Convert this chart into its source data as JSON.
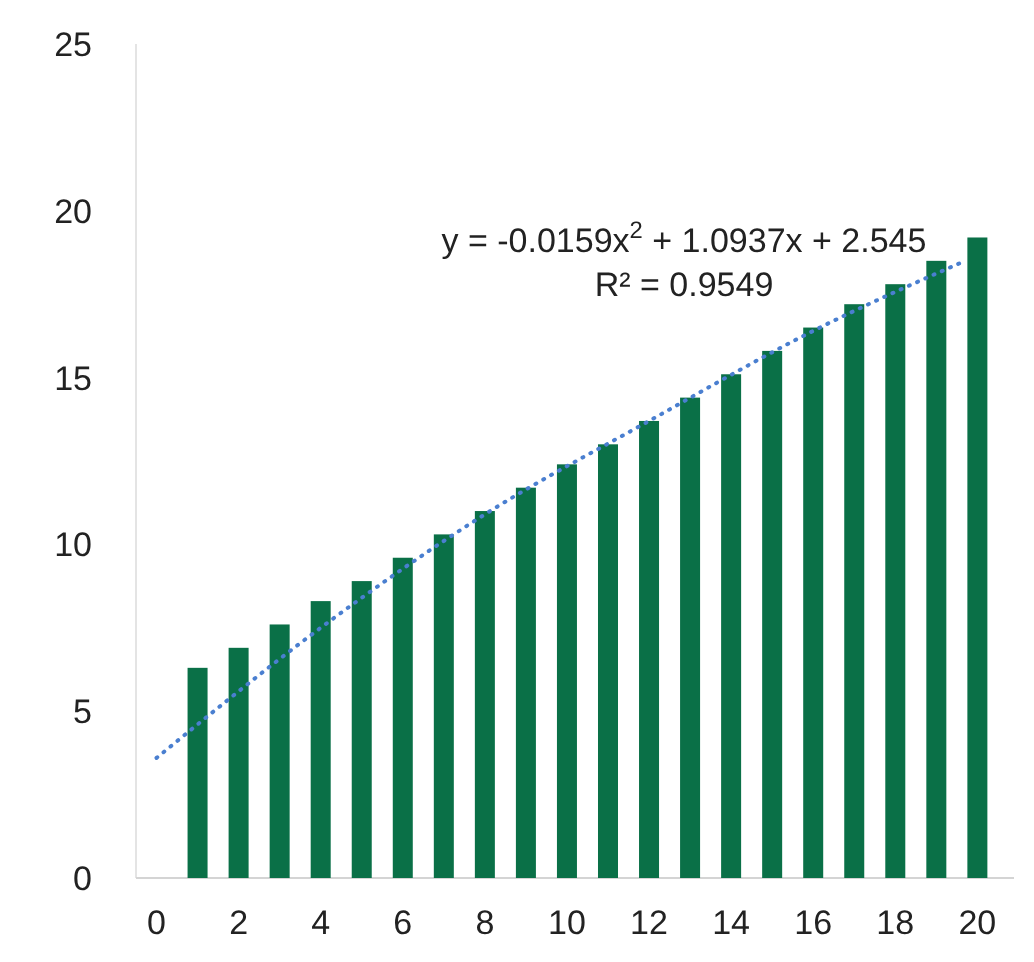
{
  "chart_data": {
    "type": "bar",
    "x": [
      1,
      2,
      3,
      4,
      5,
      6,
      7,
      8,
      9,
      10,
      11,
      12,
      13,
      14,
      15,
      16,
      17,
      18,
      19,
      20
    ],
    "xlim": [
      -0.5,
      20.6
    ],
    "xticks": [
      0,
      2,
      4,
      6,
      8,
      10,
      12,
      14,
      16,
      18,
      20
    ],
    "ylim": [
      0,
      25
    ],
    "yticks": [
      0,
      5,
      10,
      15,
      20,
      25
    ],
    "grid": false,
    "series": [
      {
        "color": "#0a7047",
        "values": [
          6.3,
          6.9,
          7.6,
          8.3,
          8.9,
          9.6,
          10.3,
          11.0,
          11.7,
          12.4,
          13.0,
          13.7,
          14.4,
          15.1,
          15.8,
          16.5,
          17.2,
          17.8,
          18.5,
          19.2
        ]
      },
      {
        "type": "line",
        "color": "#4a7fd0",
        "line_style": "dotted",
        "x": [
          0,
          4,
          8,
          12,
          16,
          19.7
        ],
        "values": [
          3.6,
          7.5,
          10.9,
          13.7,
          16.4,
          18.5
        ]
      }
    ],
    "annotations": [
      "y = -0.0159x$^{2}$ + 1.0937x + 2.545",
      "R² = 0.9549"
    ]
  }
}
